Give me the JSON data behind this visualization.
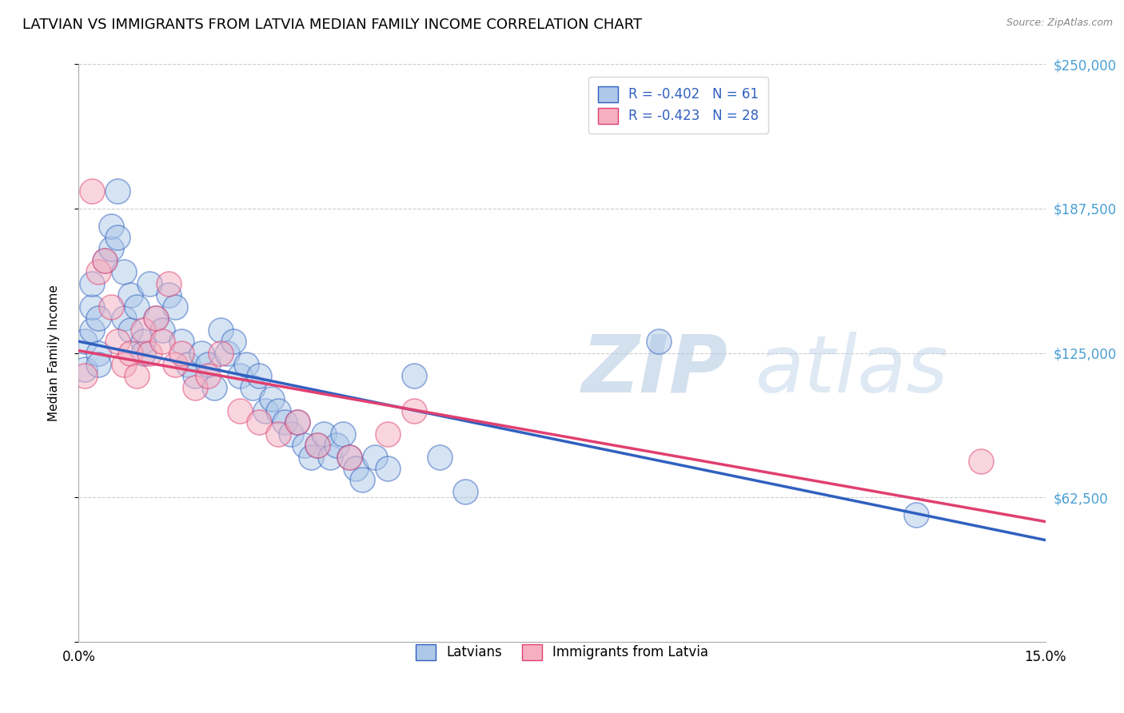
{
  "title": "LATVIAN VS IMMIGRANTS FROM LATVIA MEDIAN FAMILY INCOME CORRELATION CHART",
  "source": "Source: ZipAtlas.com",
  "ylabel": "Median Family Income",
  "xlabel_latvians": "Latvians",
  "xlabel_immigrants": "Immigrants from Latvia",
  "xlim": [
    0,
    0.15
  ],
  "ylim": [
    0,
    250000
  ],
  "yticks": [
    0,
    62500,
    125000,
    187500,
    250000
  ],
  "ytick_labels": [
    "",
    "$62,500",
    "$125,000",
    "$187,500",
    "$250,000"
  ],
  "xticks": [
    0,
    0.025,
    0.05,
    0.075,
    0.1,
    0.125,
    0.15
  ],
  "xtick_labels": [
    "0.0%",
    "",
    "",
    "",
    "",
    "",
    "15.0%"
  ],
  "r_latvian": -0.402,
  "n_latvian": 61,
  "r_immigrant": -0.423,
  "n_immigrant": 28,
  "color_latvian": "#adc8e8",
  "color_immigrant": "#f5afc0",
  "color_line_latvian": "#3060c0",
  "color_line_immigrant": "#e04070",
  "background_color": "#ffffff",
  "watermark_zip": "ZIP",
  "watermark_atlas": "atlas",
  "title_fontsize": 13,
  "latvians_x": [
    0.001,
    0.001,
    0.002,
    0.002,
    0.002,
    0.003,
    0.003,
    0.003,
    0.004,
    0.005,
    0.005,
    0.006,
    0.006,
    0.007,
    0.007,
    0.008,
    0.008,
    0.009,
    0.01,
    0.01,
    0.011,
    0.012,
    0.013,
    0.014,
    0.015,
    0.016,
    0.017,
    0.018,
    0.019,
    0.02,
    0.021,
    0.022,
    0.023,
    0.024,
    0.025,
    0.026,
    0.027,
    0.028,
    0.029,
    0.03,
    0.031,
    0.032,
    0.033,
    0.034,
    0.035,
    0.036,
    0.037,
    0.038,
    0.039,
    0.04,
    0.041,
    0.042,
    0.043,
    0.044,
    0.046,
    0.048,
    0.052,
    0.056,
    0.06,
    0.09,
    0.13
  ],
  "latvians_y": [
    130000,
    118000,
    135000,
    145000,
    155000,
    140000,
    125000,
    120000,
    165000,
    170000,
    180000,
    195000,
    175000,
    160000,
    140000,
    150000,
    135000,
    145000,
    130000,
    125000,
    155000,
    140000,
    135000,
    150000,
    145000,
    130000,
    120000,
    115000,
    125000,
    120000,
    110000,
    135000,
    125000,
    130000,
    115000,
    120000,
    110000,
    115000,
    100000,
    105000,
    100000,
    95000,
    90000,
    95000,
    85000,
    80000,
    85000,
    90000,
    80000,
    85000,
    90000,
    80000,
    75000,
    70000,
    80000,
    75000,
    115000,
    80000,
    65000,
    130000,
    55000
  ],
  "immigrants_x": [
    0.001,
    0.002,
    0.003,
    0.004,
    0.005,
    0.006,
    0.007,
    0.008,
    0.009,
    0.01,
    0.011,
    0.012,
    0.013,
    0.014,
    0.015,
    0.016,
    0.018,
    0.02,
    0.022,
    0.025,
    0.028,
    0.031,
    0.034,
    0.037,
    0.042,
    0.048,
    0.052,
    0.14
  ],
  "immigrants_y": [
    115000,
    195000,
    160000,
    165000,
    145000,
    130000,
    120000,
    125000,
    115000,
    135000,
    125000,
    140000,
    130000,
    155000,
    120000,
    125000,
    110000,
    115000,
    125000,
    100000,
    95000,
    90000,
    95000,
    85000,
    80000,
    90000,
    100000,
    78000
  ],
  "line_lv_y0": 130000,
  "line_lv_y1": 44000,
  "line_im_y0": 126000,
  "line_im_y1": 52000
}
